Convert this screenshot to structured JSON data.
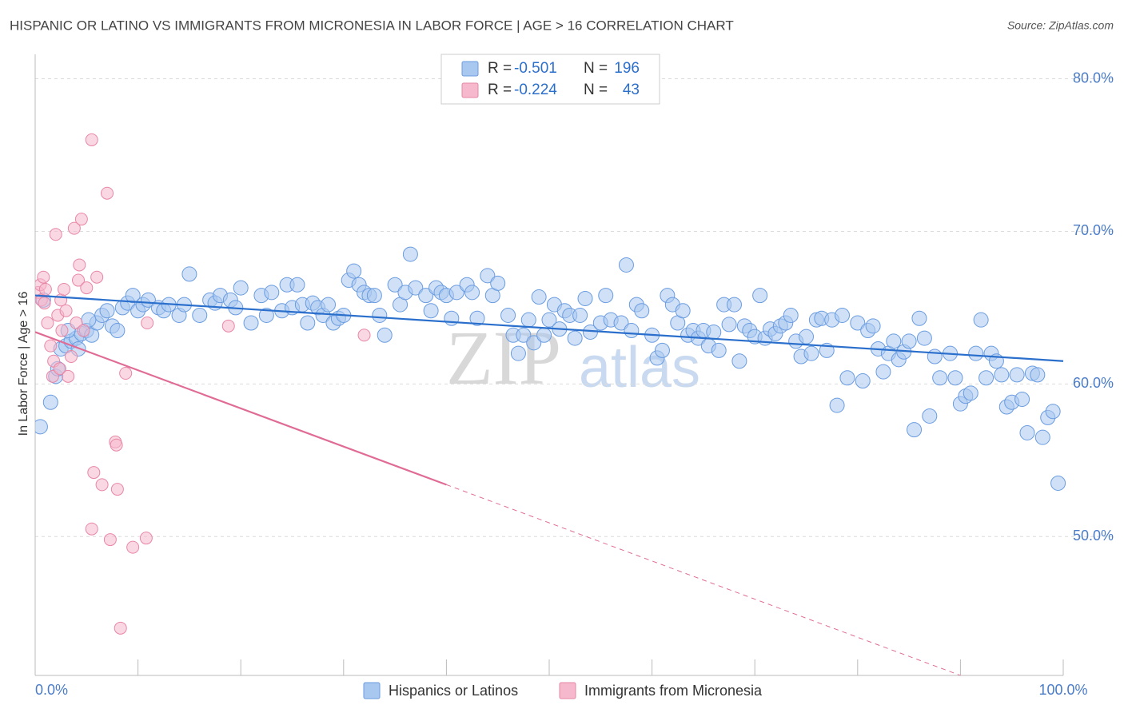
{
  "chart_data": {
    "type": "scatter",
    "title": "HISPANIC OR LATINO VS IMMIGRANTS FROM MICRONESIA IN LABOR FORCE | AGE > 16 CORRELATION CHART",
    "source": "Source: ZipAtlas.com",
    "y_label": "In Labor Force | Age > 16",
    "watermark": [
      "ZIP",
      "atlas"
    ],
    "xlim": [
      0,
      105
    ],
    "ylim": [
      40.9,
      81.6
    ],
    "xticks": [
      {
        "value": 0,
        "label": "0.0%"
      },
      {
        "value": 100,
        "label": "100.0%"
      }
    ],
    "x_minor_ticks": [
      10,
      20,
      30,
      40,
      50,
      60,
      70,
      80,
      90
    ],
    "yticks": [
      {
        "value": 50,
        "label": "50.0%"
      },
      {
        "value": 60,
        "label": "60.0%"
      },
      {
        "value": 70,
        "label": "70.0%"
      },
      {
        "value": 80,
        "label": "80.0%"
      }
    ],
    "grid": true,
    "legend_r_label": "R =",
    "legend_n_label": "N =",
    "series": [
      {
        "name": "Hispanics or Latinos",
        "color": "#6a9ce0",
        "fill": "#a9c8f0",
        "line_color": "#2b6fcc",
        "r": -0.501,
        "n": 196,
        "x": [
          0.5,
          1.5,
          2,
          2.2,
          2.5,
          3,
          3.5,
          4,
          4.2,
          4.5,
          5,
          5.5,
          6,
          6.5,
          7,
          7.5,
          8,
          8.5,
          9,
          9.5,
          10,
          10.5,
          11,
          12,
          12.5,
          13,
          14,
          14.5,
          15,
          16,
          17,
          17.5,
          18,
          19,
          19.5,
          20,
          21,
          22,
          22.5,
          23,
          24,
          24.5,
          25,
          25.5,
          26,
          26.5,
          27,
          27.5,
          28,
          28.5,
          29,
          29.5,
          30,
          30.5,
          31,
          31.5,
          32,
          32.5,
          33,
          33.5,
          34,
          35,
          35.5,
          36,
          36.5,
          37,
          38,
          38.5,
          39,
          39.5,
          40,
          40.5,
          41,
          42,
          42.5,
          43,
          44,
          44.5,
          45,
          46,
          46.5,
          47,
          47.5,
          48,
          48.5,
          49,
          49.5,
          50,
          50.5,
          51,
          51.5,
          52,
          52.5,
          53,
          53.5,
          54,
          55,
          55.5,
          56,
          57,
          57.5,
          58,
          58.5,
          59,
          60,
          60.5,
          61,
          61.5,
          62,
          62.5,
          63,
          63.5,
          64,
          64.5,
          65,
          65.5,
          66,
          66.5,
          67,
          67.5,
          68,
          68.5,
          69,
          69.5,
          70,
          70.5,
          71,
          71.5,
          72,
          72.5,
          73,
          73.5,
          74,
          74.5,
          75,
          75.5,
          76,
          76.5,
          77,
          77.5,
          78,
          78.5,
          79,
          80,
          80.5,
          81,
          81.5,
          82,
          82.5,
          83,
          83.5,
          84,
          84.5,
          85,
          85.5,
          86,
          86.5,
          87,
          87.5,
          88,
          89,
          89.5,
          90,
          90.5,
          91,
          91.5,
          92,
          92.5,
          93,
          93.5,
          94,
          94.5,
          95,
          95.5,
          96,
          96.5,
          97,
          97.5,
          98,
          98.5,
          99,
          99.5,
          0.8,
          3.2,
          5.2
        ],
        "values": [
          57.2,
          58.8,
          60.5,
          61,
          62.3,
          62.5,
          62.8,
          63,
          62.3,
          63.3,
          63.5,
          63.2,
          64,
          64.5,
          64.8,
          63.8,
          63.5,
          65,
          65.3,
          65.8,
          64.8,
          65.2,
          65.5,
          65,
          64.8,
          65.2,
          64.5,
          65.2,
          67.2,
          64.5,
          65.5,
          65.3,
          65.8,
          65.5,
          65,
          66.3,
          64,
          65.8,
          64.5,
          66,
          64.8,
          66.5,
          65,
          66.5,
          65.2,
          64,
          65.3,
          65,
          64.5,
          65.2,
          64,
          64.3,
          64.5,
          66.8,
          67.4,
          66.5,
          66,
          65.8,
          65.8,
          64.5,
          63.2,
          66.5,
          65.2,
          66,
          68.5,
          66.3,
          65.8,
          64.8,
          66.3,
          66,
          65.8,
          64.3,
          66,
          66.5,
          66,
          64.3,
          67.1,
          65.8,
          66.6,
          64.5,
          63.2,
          62,
          63.2,
          64.2,
          62.7,
          65.7,
          63.2,
          64.2,
          65.2,
          63.6,
          64.8,
          64.5,
          63,
          64.5,
          65.6,
          63.4,
          64,
          65.8,
          64.2,
          64,
          67.8,
          63.5,
          65.2,
          64.8,
          63.2,
          61.7,
          62.2,
          65.8,
          65.2,
          64,
          64.8,
          63.2,
          63.5,
          63,
          63.5,
          62.5,
          63.4,
          62.2,
          65.2,
          63.9,
          65.2,
          61.5,
          63.8,
          63.5,
          63.1,
          65.8,
          63,
          63.6,
          63.3,
          63.8,
          64,
          64.5,
          62.8,
          61.8,
          63.1,
          62,
          64.2,
          64.3,
          62.2,
          64.2,
          58.6,
          64.5,
          60.4,
          64,
          60.2,
          63.5,
          63.8,
          62.3,
          60.8,
          62,
          62.8,
          61.6,
          62.1,
          62.8,
          57,
          64.3,
          63,
          57.9,
          61.8,
          60.4,
          62,
          60.4,
          58.7,
          59.2,
          59.4,
          62,
          64.2,
          60.4,
          62,
          61.5,
          60.6,
          58.5,
          58.8,
          60.6,
          59,
          56.8,
          60.7,
          60.6,
          56.5,
          57.8,
          58.2,
          53.5,
          65.5,
          63.5,
          64.2
        ],
        "trend": {
          "x": [
            0,
            100
          ],
          "y": [
            65.8,
            61.5
          ]
        }
      },
      {
        "name": "Immigrants from Micronesia",
        "color": "#e887a6",
        "fill": "#f5b8cc",
        "line_color": "#e06c96",
        "r": -0.224,
        "n": 43,
        "x": [
          0.3,
          0.5,
          0.6,
          0.8,
          0.9,
          1,
          1.2,
          1.5,
          1.7,
          1.8,
          2,
          2.2,
          2.4,
          2.5,
          2.6,
          2.8,
          3,
          3.2,
          3.5,
          3.8,
          4,
          4.2,
          4.3,
          4.5,
          4.7,
          5,
          5.5,
          5.5,
          5.7,
          6,
          6.5,
          7,
          7.3,
          7.8,
          7.9,
          8,
          8.3,
          8.8,
          9.5,
          10.8,
          10.9,
          18.8,
          32
        ],
        "values": [
          66,
          66.5,
          65.5,
          67,
          65.3,
          66.2,
          64,
          62.5,
          60.5,
          61.5,
          69.8,
          64.5,
          61,
          65.5,
          63.5,
          66.2,
          64.8,
          60.5,
          61.8,
          70.2,
          64,
          66.8,
          67.8,
          70.8,
          63.5,
          66.3,
          50.5,
          76,
          54.2,
          67,
          53.4,
          72.5,
          49.8,
          56.2,
          56,
          53.1,
          44,
          60.7,
          49.3,
          49.9,
          64,
          63.8,
          63.2
        ],
        "trend": {
          "x": [
            0,
            40
          ],
          "y": [
            63.4,
            53.4
          ]
        },
        "trend_extension": {
          "x": [
            40,
            100
          ],
          "y": [
            53.4,
            38.4
          ]
        }
      }
    ]
  }
}
